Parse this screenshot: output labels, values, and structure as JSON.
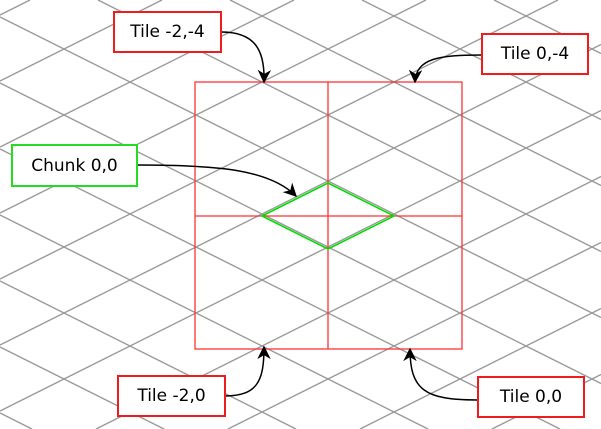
{
  "colors": {
    "grid": "#999999",
    "tile": "#ff3333",
    "chunk": "#00e000",
    "arrow": "#000000"
  },
  "labels": {
    "tile_m2_m4": "Tile -2,-4",
    "tile_0_m4": "Tile 0,-4",
    "chunk_0_0": "Chunk 0,0",
    "tile_m2_0": "Tile -2,0",
    "tile_0_0": "Tile 0,0"
  }
}
